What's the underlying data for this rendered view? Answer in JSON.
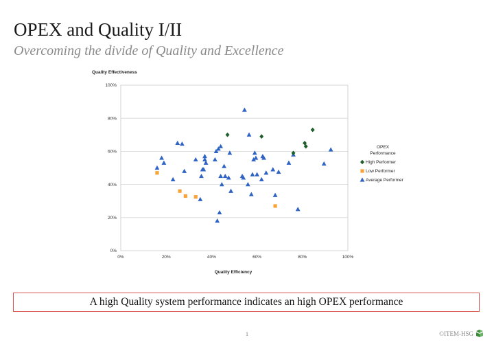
{
  "slide": {
    "title": "OPEX and Quality I/II",
    "subtitle": "Overcoming the divide of Quality and Excellence",
    "callout": "A high Quality system performance indicates an high OPEX performance",
    "page_number": "1",
    "copyright": "©ITEM-HSG"
  },
  "colors": {
    "high_performer": "#1e5e2a",
    "low_performer": "#f7a33a",
    "average_performer": "#2f63c4",
    "callout_border": "#d9534f",
    "logo": "#3c8a3a"
  },
  "chart_data": {
    "type": "scatter",
    "title": "",
    "ylabel": "Quality Effectiveness",
    "xlabel": "Quality Efficiency",
    "xlim": [
      0,
      100
    ],
    "ylim": [
      0,
      100
    ],
    "x_ticks": [
      "0%",
      "20%",
      "40%",
      "60%",
      "80%",
      "100%"
    ],
    "y_ticks": [
      "0%",
      "20%",
      "40%",
      "60%",
      "80%",
      "100%"
    ],
    "grid": true,
    "legend_title": "OPEX Performance",
    "legend_position": "right",
    "series": [
      {
        "name": "High Performer",
        "marker": "diamond",
        "color": "#1e5e2a",
        "points": [
          [
            47,
            70
          ],
          [
            62,
            69
          ],
          [
            76,
            59
          ],
          [
            81,
            65
          ],
          [
            81.5,
            63
          ],
          [
            84.5,
            73
          ]
        ]
      },
      {
        "name": "Low Performer",
        "marker": "square",
        "color": "#f7a33a",
        "points": [
          [
            16,
            47
          ],
          [
            26,
            36
          ],
          [
            28.5,
            33
          ],
          [
            33,
            32.5
          ],
          [
            68,
            27
          ]
        ]
      },
      {
        "name": "Average Performer",
        "marker": "triangle",
        "color": "#2f63c4",
        "points": [
          [
            16,
            50
          ],
          [
            18,
            56
          ],
          [
            19,
            53
          ],
          [
            23,
            43
          ],
          [
            25,
            65
          ],
          [
            27,
            64.5
          ],
          [
            28,
            48
          ],
          [
            33,
            55
          ],
          [
            35,
            31
          ],
          [
            35.5,
            45
          ],
          [
            36,
            49
          ],
          [
            36.5,
            49
          ],
          [
            37,
            57
          ],
          [
            37,
            55
          ],
          [
            37.5,
            53
          ],
          [
            41.5,
            55
          ],
          [
            42,
            60
          ],
          [
            42.5,
            18
          ],
          [
            43,
            61.5
          ],
          [
            43.5,
            23
          ],
          [
            44,
            63
          ],
          [
            44,
            45
          ],
          [
            44.5,
            40
          ],
          [
            45.5,
            51
          ],
          [
            46,
            45
          ],
          [
            47.5,
            44
          ],
          [
            48,
            59
          ],
          [
            48.5,
            36
          ],
          [
            53.5,
            45
          ],
          [
            54,
            44
          ],
          [
            54.5,
            85
          ],
          [
            56,
            40
          ],
          [
            56.5,
            70
          ],
          [
            57.5,
            34
          ],
          [
            58,
            46
          ],
          [
            58.5,
            55
          ],
          [
            59,
            59
          ],
          [
            59.5,
            56
          ],
          [
            60,
            46
          ],
          [
            62,
            43
          ],
          [
            62.5,
            57
          ],
          [
            63,
            56
          ],
          [
            64,
            47
          ],
          [
            67,
            49
          ],
          [
            68,
            33.5
          ],
          [
            69.5,
            47.5
          ],
          [
            74,
            53
          ],
          [
            76,
            58
          ],
          [
            78,
            25
          ],
          [
            89.5,
            52.5
          ],
          [
            92.5,
            61
          ]
        ]
      }
    ]
  }
}
